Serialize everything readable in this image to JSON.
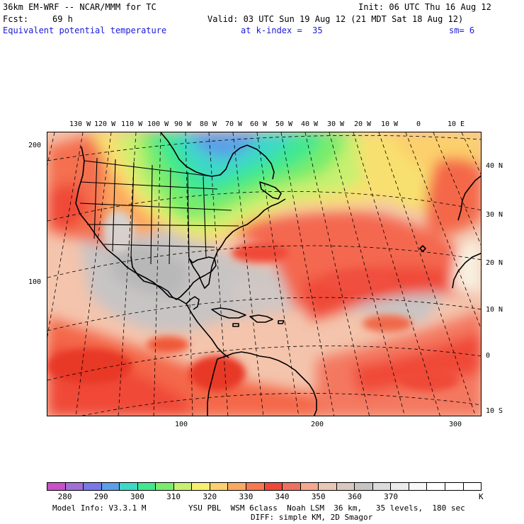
{
  "header": {
    "model_title": "36km EM-WRF -- NCAR/MMM for TC",
    "init": "Init: 06 UTC Thu 16 Aug 12",
    "fcst_label": "Fcst:",
    "fcst_value": "69 h",
    "valid": "Valid: 03 UTC Sun 19 Aug 12 (21 MDT Sat 18 Aug 12)",
    "field": "Equivalent potential temperature",
    "level": "at k-index =  35",
    "smoothing": "sm= 6"
  },
  "map": {
    "top_lon_labels": [
      "130 W",
      "120 W",
      "110 W",
      "100 W",
      "90 W",
      "80 W",
      "70 W",
      "60 W",
      "50 W",
      "40 W",
      "30 W",
      "20 W",
      "10 W",
      "0",
      "10 E"
    ],
    "right_lat_labels": [
      "40 N",
      "30 N",
      "20 N",
      "10 N",
      "0",
      "10 S"
    ],
    "left_grid_labels": [
      "200",
      "100"
    ],
    "bottom_grid_labels": [
      "100",
      "200",
      "300"
    ],
    "colors": {
      "frame": "#000000",
      "graticule": "#000000",
      "coastline": "#000000"
    }
  },
  "colorbar": {
    "unit": "K",
    "labels": [
      "280",
      "290",
      "300",
      "310",
      "320",
      "330",
      "340",
      "350",
      "360",
      "370"
    ],
    "colors": [
      "#c850c8",
      "#a070d8",
      "#7878e8",
      "#5aa0e8",
      "#3cd8c8",
      "#40e890",
      "#78ec6c",
      "#c8f070",
      "#f6f070",
      "#fcd06c",
      "#fca860",
      "#f87850",
      "#f04838",
      "#f07060",
      "#f4a890",
      "#e8c8b4",
      "#d8c8c0",
      "#c8c4c4",
      "#dcdcdc",
      "#ececec",
      "#f8f8f8",
      "#ffffff",
      "#ffffff",
      "#ffffff"
    ]
  },
  "footer": {
    "model_info": "Model Info: V3.3.1 M",
    "physics": "YSU PBL  WSM 6class  Noah LSM  36 km,   35 levels,  180 sec",
    "diffusion": "DIFF: simple KM, 2D Smagor"
  }
}
